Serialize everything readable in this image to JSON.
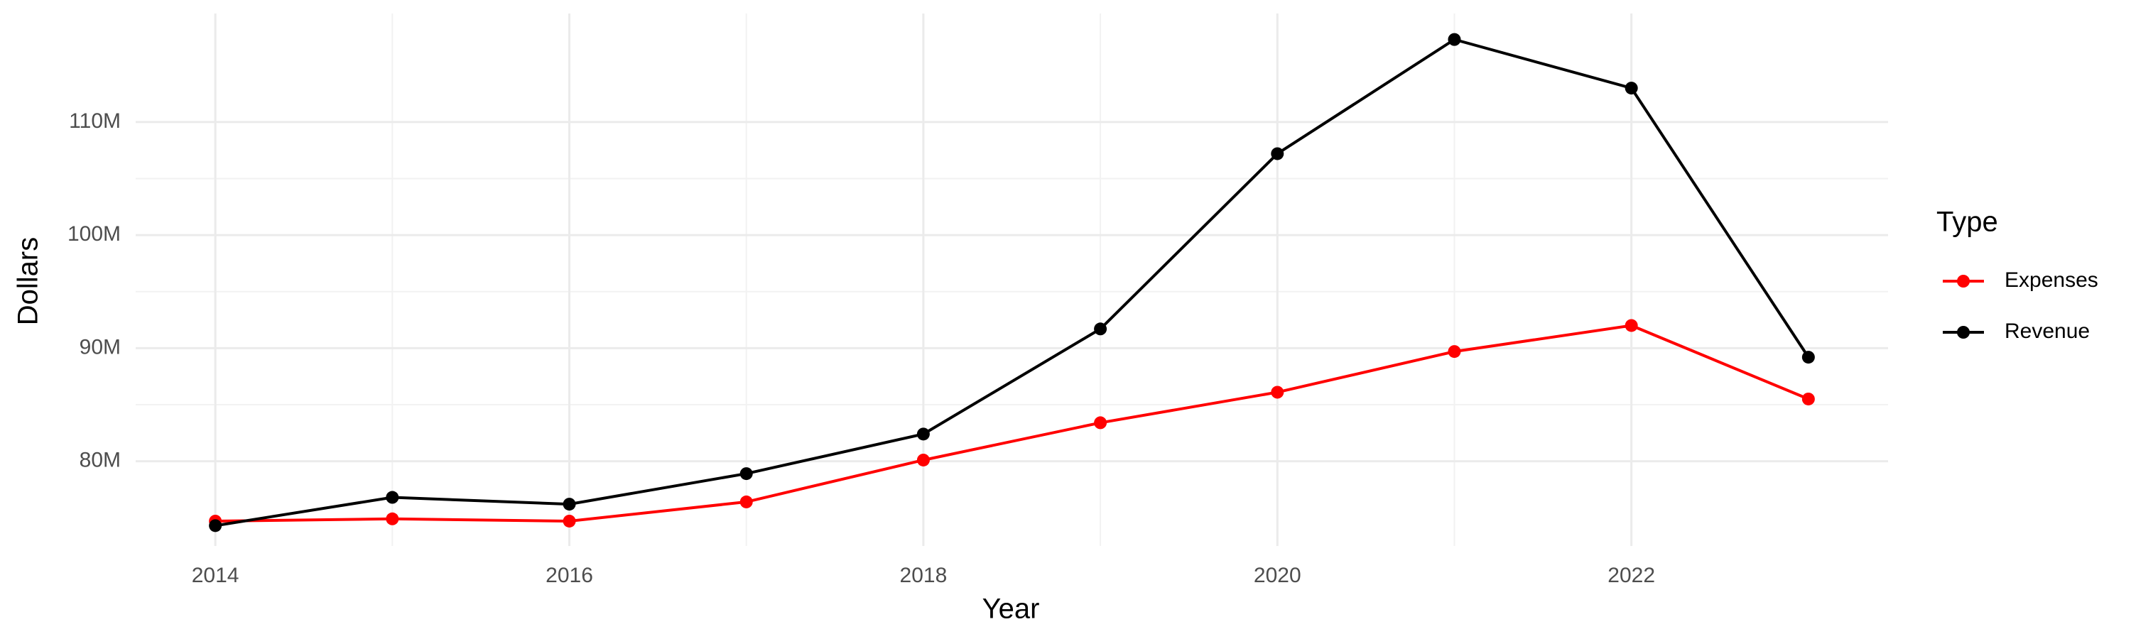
{
  "chart_data": {
    "type": "line",
    "x_label": "Year",
    "y_label": "Dollars",
    "legend_title": "Type",
    "x": [
      2014,
      2015,
      2016,
      2017,
      2018,
      2019,
      2020,
      2021,
      2022,
      2023
    ],
    "series": [
      {
        "name": "Expenses",
        "color": "#ff0000",
        "values": [
          74700000,
          74900000,
          74700000,
          76400000,
          80100000,
          83400000,
          86100000,
          89700000,
          92000000,
          85500000
        ]
      },
      {
        "name": "Revenue",
        "color": "#000000",
        "values": [
          74300000,
          76800000,
          76200000,
          78900000,
          82400000,
          91700000,
          107200000,
          117300000,
          113000000,
          89200000
        ]
      }
    ],
    "xlim": [
      2013.55,
      2023.45
    ],
    "xticks": [
      2014,
      2016,
      2018,
      2020,
      2022
    ],
    "ylim": [
      72500000,
      119600000
    ],
    "yticks": [
      {
        "value": 80000000,
        "label": "80M"
      },
      {
        "value": 90000000,
        "label": "90M"
      },
      {
        "value": 100000000,
        "label": "100M"
      },
      {
        "value": 110000000,
        "label": "110M"
      }
    ],
    "grid": true,
    "legend": "right"
  }
}
